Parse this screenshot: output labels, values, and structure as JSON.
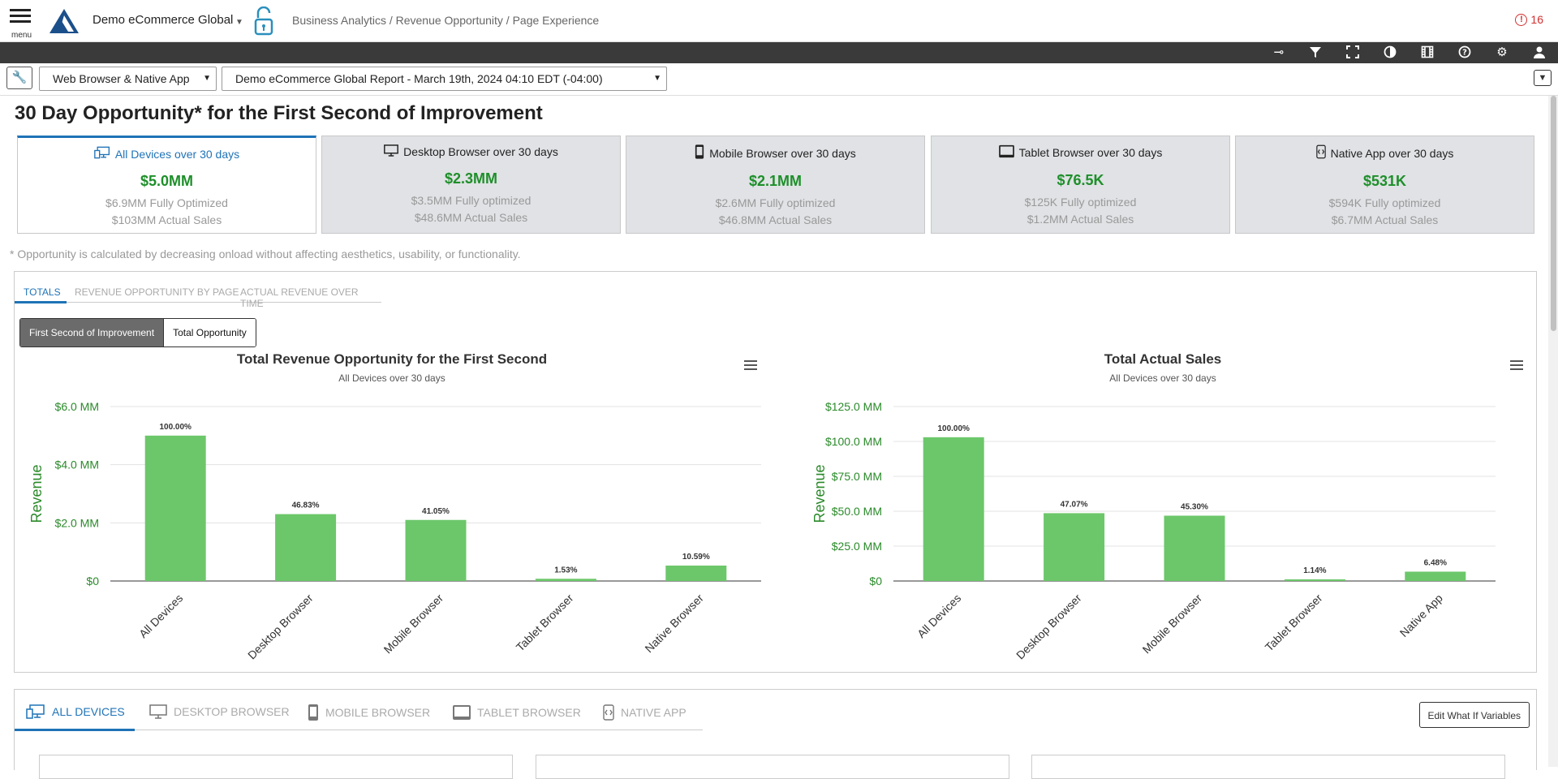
{
  "header": {
    "menu_label": "menu",
    "org_name": "Demo eCommerce Global",
    "breadcrumb": "Business Analytics / Revenue Opportunity / Page Experience",
    "alert_count": "16"
  },
  "filters": {
    "platform": "Web Browser & Native App",
    "report": "Demo eCommerce Global Report - March 19th, 2024 04:10 EDT (-04:00)"
  },
  "page_title": "30 Day Opportunity* for the First Second of Improvement",
  "cards": [
    {
      "title": "All Devices over 30 days",
      "value": "$5.0MM",
      "optimized": "$6.9MM Fully Optimized",
      "actual": "$103MM Actual Sales",
      "icon": "all-devices-icon"
    },
    {
      "title": "Desktop Browser over 30 days",
      "value": "$2.3MM",
      "optimized": "$3.5MM Fully optimized",
      "actual": "$48.6MM Actual Sales",
      "icon": "desktop-icon"
    },
    {
      "title": "Mobile Browser over 30 days",
      "value": "$2.1MM",
      "optimized": "$2.6MM Fully optimized",
      "actual": "$46.8MM Actual Sales",
      "icon": "mobile-icon"
    },
    {
      "title": "Tablet Browser over 30 days",
      "value": "$76.5K",
      "optimized": "$125K Fully optimized",
      "actual": "$1.2MM Actual Sales",
      "icon": "tablet-icon"
    },
    {
      "title": "Native App over 30 days",
      "value": "$531K",
      "optimized": "$594K Fully optimized",
      "actual": "$6.7MM Actual Sales",
      "icon": "native-app-icon"
    }
  ],
  "footnote": "* Opportunity is calculated by decreasing onload without affecting aesthetics, usability, or functionality.",
  "tabs": [
    "TOTALS",
    "REVENUE OPPORTUNITY BY PAGE",
    "ACTUAL REVENUE OVER TIME"
  ],
  "toggle": {
    "on": "First Second of Improvement",
    "off": "Total Opportunity"
  },
  "chart_data": [
    {
      "type": "bar",
      "title": "Total Revenue Opportunity for the First Second",
      "subtitle": "All Devices over 30 days",
      "ylabel": "Revenue",
      "categories": [
        "All Devices",
        "Desktop Browser",
        "Mobile Browser",
        "Tablet Browser",
        "Native Browser"
      ],
      "values": [
        5.0,
        2.3,
        2.1,
        0.0765,
        0.531
      ],
      "data_labels": [
        "100.00%",
        "46.83%",
        "41.05%",
        "1.53%",
        "10.59%"
      ],
      "ylim": [
        0,
        6
      ],
      "yticks": [
        0,
        2,
        4,
        6
      ],
      "ytick_labels": [
        "$0",
        "$2.0 MM",
        "$4.0 MM",
        "$6.0 MM"
      ],
      "color": "#6cc76a",
      "grid": true
    },
    {
      "type": "bar",
      "title": "Total Actual Sales",
      "subtitle": "All Devices over 30 days",
      "ylabel": "Revenue",
      "categories": [
        "All Devices",
        "Desktop Browser",
        "Mobile Browser",
        "Tablet Browser",
        "Native App"
      ],
      "values": [
        103,
        48.6,
        46.8,
        1.2,
        6.7
      ],
      "data_labels": [
        "100.00%",
        "47.07%",
        "45.30%",
        "1.14%",
        "6.48%"
      ],
      "ylim": [
        0,
        125
      ],
      "yticks": [
        0,
        25,
        50,
        75,
        100,
        125
      ],
      "ytick_labels": [
        "$0",
        "$25.0 MM",
        "$50.0 MM",
        "$75.0 MM",
        "$100.0 MM",
        "$125.0 MM"
      ],
      "color": "#6cc76a",
      "grid": true
    }
  ],
  "device_tabs": [
    "ALL DEVICES",
    "DESKTOP BROWSER",
    "MOBILE BROWSER",
    "TABLET BROWSER",
    "NATIVE APP"
  ],
  "edit_button": "Edit What If Variables",
  "colors": {
    "accent": "#1f73b7",
    "value_green": "#1e8f2a",
    "bar_green": "#6cc76a",
    "toolbar": "#3a3a3a"
  }
}
